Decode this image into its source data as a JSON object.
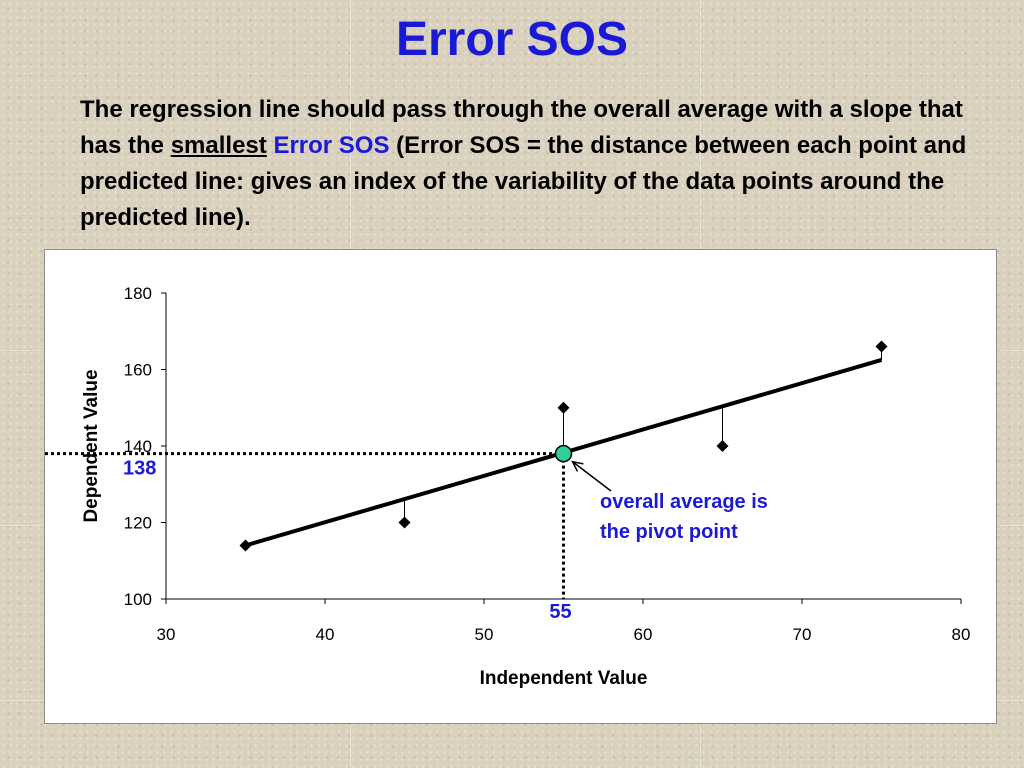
{
  "title": "Error SOS",
  "description": {
    "part1": "The regression line should pass through the overall average with a slope that has the ",
    "underlined": "smallest",
    "space": " ",
    "highlight": "Error SOS",
    "part2": " (Error SOS = the distance between each point and predicted line: gives an index of the variability of the data points around the predicted line)."
  },
  "colors": {
    "title": "#1a1ad6",
    "annotation": "#1a1ad6",
    "pivot_fill": "#2ecf9a",
    "line": "#000000"
  },
  "chart_data": {
    "type": "scatter",
    "xlabel": "Independent Value",
    "ylabel": "Dependent Value",
    "xlim": [
      30,
      80
    ],
    "ylim": [
      100,
      180
    ],
    "x_ticks": [
      "30",
      "40",
      "50",
      "60",
      "70",
      "80"
    ],
    "y_ticks": [
      "100",
      "120",
      "140",
      "160",
      "180"
    ],
    "grid": false,
    "points": [
      {
        "x": 35,
        "y": 114
      },
      {
        "x": 45,
        "y": 120
      },
      {
        "x": 55,
        "y": 150
      },
      {
        "x": 65,
        "y": 140
      },
      {
        "x": 75,
        "y": 166
      }
    ],
    "regression_line": {
      "x1": 35,
      "y1": 114,
      "x2": 75,
      "y2": 162.5
    },
    "residuals": [
      {
        "x": 45,
        "from": 120,
        "to": 126.5
      },
      {
        "x": 55,
        "from": 150,
        "to": 138
      },
      {
        "x": 65,
        "from": 140,
        "to": 150.5
      },
      {
        "x": 75,
        "from": 166,
        "to": 162.5
      }
    ],
    "pivot": {
      "x": 55,
      "y": 138
    },
    "pivot_x_label": "55",
    "pivot_y_label": "138",
    "annotation": "overall average is\nthe pivot point",
    "annotation_lines": [
      "overall average is",
      "the pivot point"
    ]
  }
}
